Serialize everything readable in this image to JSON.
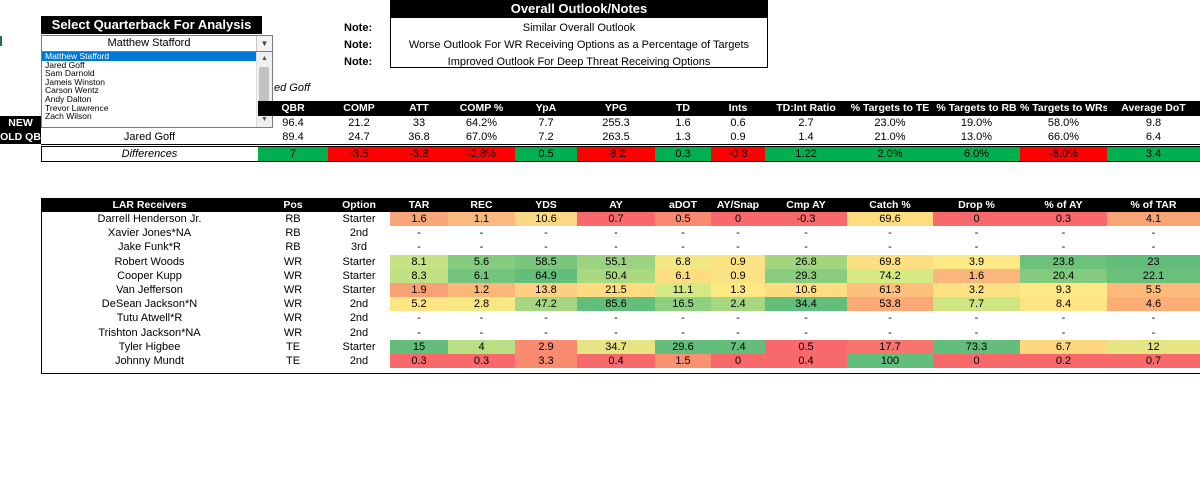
{
  "selector": {
    "title": "Select Quarterback For Analysis",
    "selected": "Matthew Stafford",
    "options": [
      "Matthew Stafford",
      "Jared Goff",
      "Sam Darnold",
      "Jameis Winston",
      "Carson Wentz",
      "Andy Dalton",
      "Trevor Lawrence",
      "Zach Wilson"
    ],
    "partial_label": "ed Goff"
  },
  "outlook": {
    "title": "Overall Outlook/Notes",
    "notes": [
      {
        "label": "Note:",
        "text": "Similar Overall Outlook"
      },
      {
        "label": "Note:",
        "text": "Worse Outlook For WR Receiving Options as a Percentage of Targets"
      },
      {
        "label": "Note:",
        "text": "Improved Outlook For Deep Threat Receiving Options"
      }
    ]
  },
  "qb_table": {
    "headers": [
      "QBR",
      "COMP",
      "ATT",
      "COMP %",
      "YpA",
      "YPG",
      "TD",
      "Ints",
      "TD:Int Ratio",
      "% Targets to TE",
      "% Targets to RB",
      "% Targets to WRs",
      "Average DoT"
    ],
    "new_label": "NEW QB",
    "old_label": "OLD QB",
    "old_name": "Jared Goff",
    "new_row": [
      "96.4",
      "21.2",
      "33",
      "64.2%",
      "7.7",
      "255.3",
      "1.6",
      "0.6",
      "2.7",
      "23.0%",
      "19.0%",
      "58.0%",
      "9.8"
    ],
    "old_row": [
      "89.4",
      "24.7",
      "36.8",
      "67.0%",
      "7.2",
      "263.5",
      "1.3",
      "0.9",
      "1.4",
      "21.0%",
      "13.0%",
      "66.0%",
      "6.4"
    ],
    "diff_label": "Differences",
    "diff_row": [
      "7",
      "-3.5",
      "-3.8",
      "-2.8%",
      "0.5",
      "-8.2",
      "0.3",
      "-0.3",
      "1.22",
      "2.0%",
      "6.0%",
      "-8.0%",
      "3.4"
    ],
    "diff_colors": [
      "#00b050",
      "#ff0000",
      "#ff0000",
      "#ff0000",
      "#00b050",
      "#ff0000",
      "#00b050",
      "#ff0000",
      "#00b050",
      "#00b050",
      "#00b050",
      "#ff0000",
      "#00b050"
    ]
  },
  "receivers": {
    "headers": [
      "LAR Receivers",
      "Pos",
      "Option",
      "TAR",
      "REC",
      "YDS",
      "AY",
      "aDOT",
      "AY/Snap",
      "Cmp AY",
      "Catch %",
      "Drop %",
      "% of AY",
      "% of TAR"
    ],
    "rows": [
      {
        "name": "Darrell Henderson Jr.",
        "pos": "RB",
        "option": "Starter",
        "vals": [
          "1.6",
          "1.1",
          "10.6",
          "0.7",
          "0.5",
          "0",
          "-0.3",
          "69.6",
          "0",
          "0.3",
          "4.1"
        ],
        "colors": [
          "#f8a77a",
          "#fbb97e",
          "#fbd884",
          "#f8696b",
          "#f98970",
          "#f8696b",
          "#f8696b",
          "#fedd81",
          "#f8696b",
          "#f8696b",
          "#f9a475"
        ]
      },
      {
        "name": "Xavier Jones*NA",
        "pos": "RB",
        "option": "2nd",
        "vals": [
          "-",
          "-",
          "-",
          "-",
          "-",
          "-",
          "-",
          "-",
          "-",
          "-",
          "-"
        ],
        "colors": []
      },
      {
        "name": "Jake Funk*R",
        "pos": "RB",
        "option": "3rd",
        "vals": [
          "-",
          "-",
          "-",
          "-",
          "-",
          "-",
          "-",
          "-",
          "-",
          "-",
          "-"
        ],
        "colors": []
      },
      {
        "name": "Robert Woods",
        "pos": "WR",
        "option": "Starter",
        "vals": [
          "8.1",
          "5.6",
          "58.5",
          "55.1",
          "6.8",
          "0.9",
          "26.8",
          "69.8",
          "3.9",
          "23.8",
          "23"
        ],
        "colors": [
          "#c5e384",
          "#84cc7f",
          "#7ac67c",
          "#9bd380",
          "#f2e783",
          "#fbe283",
          "#a3d581",
          "#fbdf82",
          "#ffe984",
          "#6cc17b",
          "#63be7b"
        ]
      },
      {
        "name": "Cooper Kupp",
        "pos": "WR",
        "option": "Starter",
        "vals": [
          "8.3",
          "6.1",
          "64.9",
          "50.4",
          "6.1",
          "0.9",
          "29.3",
          "74.2",
          "1.6",
          "20.4",
          "22.1"
        ],
        "colors": [
          "#bfe183",
          "#74c47d",
          "#63be7b",
          "#abd982",
          "#fedd81",
          "#fbe283",
          "#8acd7f",
          "#d6ea84",
          "#fbb77a",
          "#83ca7e",
          "#6ac07b"
        ]
      },
      {
        "name": "Van Jefferson",
        "pos": "WR",
        "option": "Starter",
        "vals": [
          "1.9",
          "1.2",
          "13.8",
          "21.5",
          "11.1",
          "1.3",
          "10.6",
          "61.3",
          "3.2",
          "9.3",
          "5.5"
        ],
        "colors": [
          "#f9a176",
          "#fbb67a",
          "#fcd082",
          "#fedd81",
          "#d4e982",
          "#ffe984",
          "#fedd81",
          "#fcc07c",
          "#fee282",
          "#ffe984",
          "#fcb97a"
        ]
      },
      {
        "name": "DeSean Jackson*N",
        "pos": "WR",
        "option": "2nd",
        "vals": [
          "5.2",
          "2.8",
          "47.2",
          "85.6",
          "16.5",
          "2.4",
          "34.4",
          "53.8",
          "7.7",
          "8.4",
          "4.6"
        ],
        "colors": [
          "#fee483",
          "#f6e883",
          "#a5d681",
          "#63be7b",
          "#8fcf80",
          "#a8d782",
          "#63be7b",
          "#fba976",
          "#cde682",
          "#fee482",
          "#fbad77"
        ]
      },
      {
        "name": "Tutu Atwell*R",
        "pos": "WR",
        "option": "2nd",
        "vals": [
          "-",
          "-",
          "-",
          "-",
          "-",
          "-",
          "-",
          "-",
          "-",
          "-",
          "-"
        ],
        "colors": []
      },
      {
        "name": "Trishton Jackson*NA",
        "pos": "WR",
        "option": "2nd",
        "vals": [
          "-",
          "-",
          "-",
          "-",
          "-",
          "-",
          "-",
          "-",
          "-",
          "-",
          "-"
        ],
        "colors": []
      },
      {
        "name": "Tyler Higbee",
        "pos": "TE",
        "option": "Starter",
        "vals": [
          "15",
          "4",
          "2.9",
          "34.7",
          "29.6",
          "7.4",
          "0.5",
          "17.7",
          "73.3",
          "6.7",
          "12"
        ],
        "colors": [
          "#63be7b",
          "#b9df83",
          "#f98b6f",
          "#e6e483",
          "#63be7b",
          "#63be7b",
          "#f8696b",
          "#f8756d",
          "#63be7b",
          "#fdd680",
          "#e7e483"
        ]
      },
      {
        "name": "Johnny Mundt",
        "pos": "TE",
        "option": "2nd",
        "vals": [
          "0.3",
          "0.3",
          "3.3",
          "0.4",
          "1.5",
          "0",
          "0.4",
          "100",
          "0",
          "0.2",
          "0.7"
        ],
        "colors": [
          "#f8696b",
          "#f8696b",
          "#f98c6f",
          "#f8696b",
          "#f9906f",
          "#f8696b",
          "#f8696b",
          "#63be7b",
          "#f8696b",
          "#f8696b",
          "#f8696b"
        ]
      }
    ]
  }
}
